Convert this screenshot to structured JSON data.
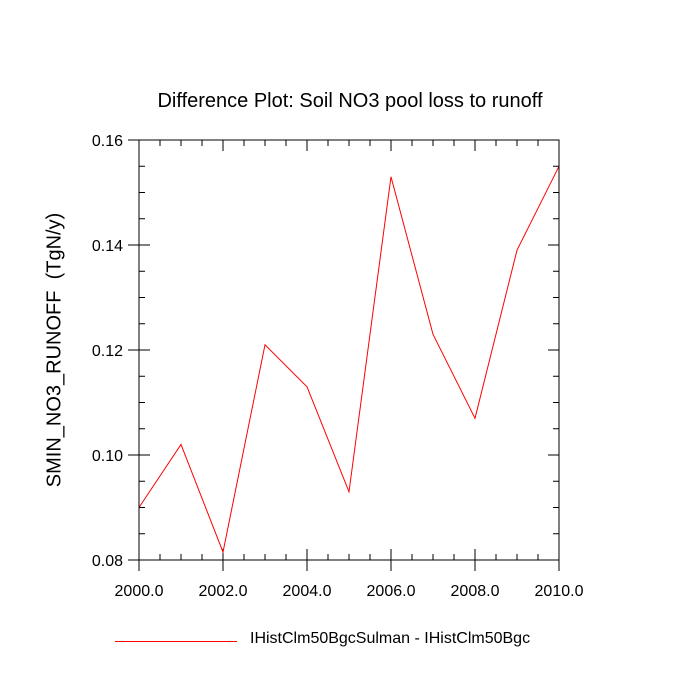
{
  "chart_data": {
    "type": "line",
    "title": "Difference Plot: Soil NO3 pool loss to runoff",
    "xlabel": "",
    "ylabel": "SMIN_NO3_RUNOFF  (TgN/y)",
    "xlim": [
      2000,
      2010
    ],
    "ylim": [
      0.08,
      0.16
    ],
    "x_ticks": [
      "2000.0",
      "2002.0",
      "2004.0",
      "2006.0",
      "2008.0",
      "2010.0"
    ],
    "y_ticks": [
      "0.08",
      "0.10",
      "0.12",
      "0.14",
      "0.16"
    ],
    "x_tick_values": [
      2000,
      2002,
      2004,
      2006,
      2008,
      2010
    ],
    "y_tick_values": [
      0.08,
      0.1,
      0.12,
      0.14,
      0.16
    ],
    "x_minor_step": 0.5,
    "y_minor_step": 0.005,
    "grid": false,
    "legend_position": "bottom",
    "x": [
      2000,
      2001,
      2002,
      2003,
      2004,
      2005,
      2006,
      2007,
      2008,
      2009,
      2010
    ],
    "series": [
      {
        "name": "IHistClm50BgcSulman - IHistClm50Bgc",
        "color": "#ff0000",
        "values": [
          0.09,
          0.102,
          0.0815,
          0.121,
          0.113,
          0.093,
          0.153,
          0.123,
          0.107,
          0.139,
          0.155
        ]
      }
    ]
  }
}
